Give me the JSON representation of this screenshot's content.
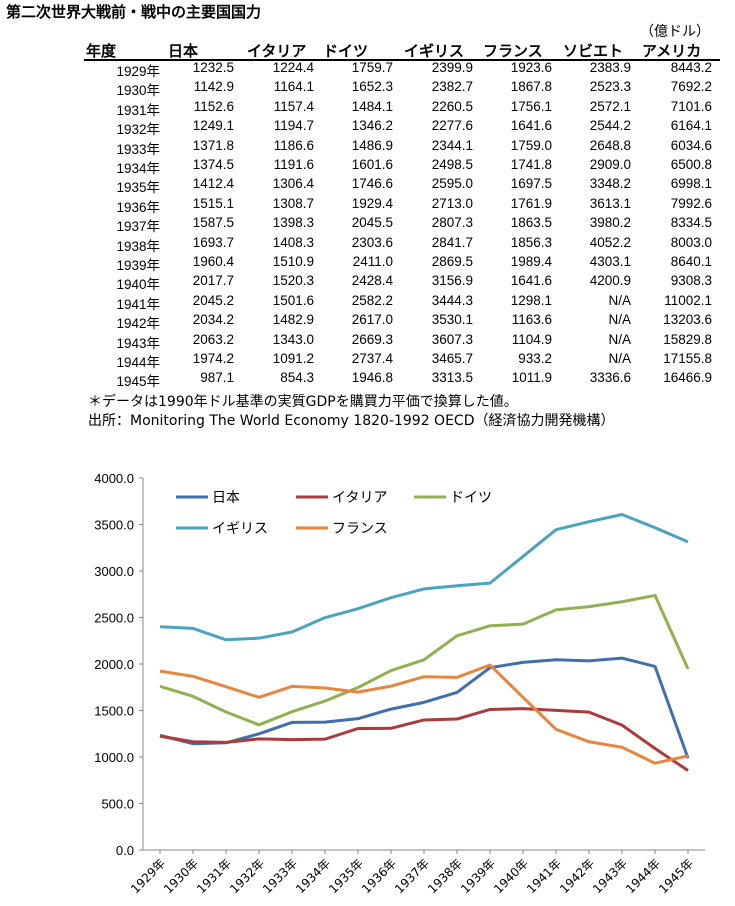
{
  "title": "第二次世界大戦前・戦中の主要国国力",
  "unit": "（億ドル）",
  "headers": [
    "年度",
    "日本",
    "イタリア",
    "ドイツ",
    "イギリス",
    "フランス",
    "ソビエト",
    "アメリカ"
  ],
  "rows": [
    [
      "1929年",
      "1232.5",
      "1224.4",
      "1759.7",
      "2399.9",
      "1923.6",
      "2383.9",
      "8443.2"
    ],
    [
      "1930年",
      "1142.9",
      "1164.1",
      "1652.3",
      "2382.7",
      "1867.8",
      "2523.3",
      "7692.2"
    ],
    [
      "1931年",
      "1152.6",
      "1157.4",
      "1484.1",
      "2260.5",
      "1756.1",
      "2572.1",
      "7101.6"
    ],
    [
      "1932年",
      "1249.1",
      "1194.7",
      "1346.2",
      "2277.6",
      "1641.6",
      "2544.2",
      "6164.1"
    ],
    [
      "1933年",
      "1371.8",
      "1186.6",
      "1486.9",
      "2344.1",
      "1759.0",
      "2648.8",
      "6034.6"
    ],
    [
      "1934年",
      "1374.5",
      "1191.6",
      "1601.6",
      "2498.5",
      "1741.8",
      "2909.0",
      "6500.8"
    ],
    [
      "1935年",
      "1412.4",
      "1306.4",
      "1746.6",
      "2595.0",
      "1697.5",
      "3348.2",
      "6998.1"
    ],
    [
      "1936年",
      "1515.1",
      "1308.7",
      "1929.4",
      "2713.0",
      "1761.9",
      "3613.1",
      "7992.6"
    ],
    [
      "1937年",
      "1587.5",
      "1398.3",
      "2045.5",
      "2807.3",
      "1863.5",
      "3980.2",
      "8334.5"
    ],
    [
      "1938年",
      "1693.7",
      "1408.3",
      "2303.6",
      "2841.7",
      "1856.3",
      "4052.2",
      "8003.0"
    ],
    [
      "1939年",
      "1960.4",
      "1510.9",
      "2411.0",
      "2869.5",
      "1989.4",
      "4303.1",
      "8640.1"
    ],
    [
      "1940年",
      "2017.7",
      "1520.3",
      "2428.4",
      "3156.9",
      "1641.6",
      "4200.9",
      "9308.3"
    ],
    [
      "1941年",
      "2045.2",
      "1501.6",
      "2582.2",
      "3444.3",
      "1298.1",
      "N/A",
      "11002.1"
    ],
    [
      "1942年",
      "2034.2",
      "1482.9",
      "2617.0",
      "3530.1",
      "1163.6",
      "N/A",
      "13203.6"
    ],
    [
      "1943年",
      "2063.2",
      "1343.0",
      "2669.3",
      "3607.3",
      "1104.9",
      "N/A",
      "15829.8"
    ],
    [
      "1944年",
      "1974.2",
      "1091.2",
      "2737.4",
      "3465.7",
      "933.2",
      "N/A",
      "17155.8"
    ],
    [
      "1945年",
      "987.1",
      "854.3",
      "1946.8",
      "3313.5",
      "1011.9",
      "3336.6",
      "16466.9"
    ]
  ],
  "note": "＊データは1990年ドル基準の実質GDPを購買力平価で換算した値。",
  "source": "出所：Monitoring The World Economy 1820-1992 OECD（経済協力開発機構）",
  "chart_data": {
    "type": "line",
    "categories": [
      "1929年",
      "1930年",
      "1931年",
      "1932年",
      "1933年",
      "1934年",
      "1935年",
      "1936年",
      "1937年",
      "1938年",
      "1939年",
      "1940年",
      "1941年",
      "1942年",
      "1943年",
      "1944年",
      "1945年"
    ],
    "yticks": [
      "0.0",
      "500.0",
      "1000.0",
      "1500.0",
      "2000.0",
      "2500.0",
      "3000.0",
      "3500.0",
      "4000.0"
    ],
    "ylim": [
      0,
      4000
    ],
    "legend": "top-inside",
    "series": [
      {
        "name": "日本",
        "color": "#3f6fad",
        "values": [
          1232.5,
          1142.9,
          1152.6,
          1249.1,
          1371.8,
          1374.5,
          1412.4,
          1515.1,
          1587.5,
          1693.7,
          1960.4,
          2017.7,
          2045.2,
          2034.2,
          2063.2,
          1974.2,
          987.1
        ]
      },
      {
        "name": "イタリア",
        "color": "#ab3b3a",
        "values": [
          1224.4,
          1164.1,
          1157.4,
          1194.7,
          1186.6,
          1191.6,
          1306.4,
          1308.7,
          1398.3,
          1408.3,
          1510.9,
          1520.3,
          1501.6,
          1482.9,
          1343.0,
          1091.2,
          854.3
        ]
      },
      {
        "name": "ドイツ",
        "color": "#8fb150",
        "values": [
          1759.7,
          1652.3,
          1484.1,
          1346.2,
          1486.9,
          1601.6,
          1746.6,
          1929.4,
          2045.5,
          2303.6,
          2411.0,
          2428.4,
          2582.2,
          2617.0,
          2669.3,
          2737.4,
          1946.8
        ]
      },
      {
        "name": "イギリス",
        "color": "#4aa3bf",
        "values": [
          2399.9,
          2382.7,
          2260.5,
          2277.6,
          2344.1,
          2498.5,
          2595.0,
          2713.0,
          2807.3,
          2841.7,
          2869.5,
          3156.9,
          3444.3,
          3530.1,
          3607.3,
          3465.7,
          3313.5
        ]
      },
      {
        "name": "フランス",
        "color": "#e8853d",
        "values": [
          1923.6,
          1867.8,
          1756.1,
          1641.6,
          1759.0,
          1741.8,
          1697.5,
          1761.9,
          1863.5,
          1856.3,
          1989.4,
          1641.6,
          1298.1,
          1163.6,
          1104.9,
          933.2,
          1011.9
        ]
      }
    ]
  }
}
